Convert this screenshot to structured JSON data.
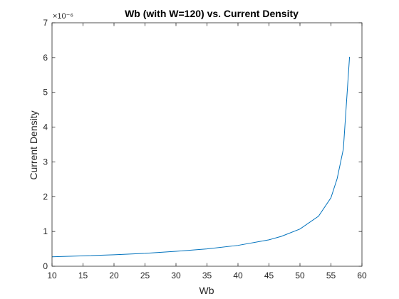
{
  "chart_data": {
    "type": "line",
    "title": "Wb (with W=120) vs. Current Density",
    "xlabel": "Wb",
    "ylabel": "Current Density",
    "xlim": [
      10,
      60
    ],
    "ylim": [
      0,
      7
    ],
    "y_exponent_label": "×10⁻⁶",
    "x_ticks": [
      10,
      15,
      20,
      25,
      30,
      35,
      40,
      45,
      50,
      55,
      60
    ],
    "y_ticks": [
      0,
      1,
      2,
      3,
      4,
      5,
      6,
      7
    ],
    "grid": false,
    "series": [
      {
        "color": "#0072bd",
        "x": [
          10,
          15,
          20,
          25,
          30,
          35,
          40,
          45,
          47,
          50,
          53,
          55,
          56,
          57,
          58
        ],
        "y": [
          0.27,
          0.3,
          0.33,
          0.37,
          0.43,
          0.5,
          0.6,
          0.76,
          0.86,
          1.07,
          1.44,
          1.97,
          2.52,
          3.37,
          6.02
        ]
      }
    ]
  }
}
